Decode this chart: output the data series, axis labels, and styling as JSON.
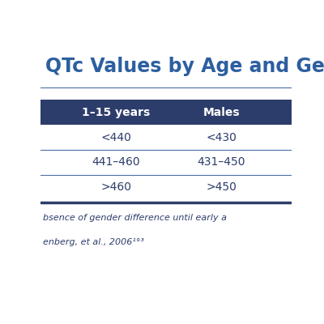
{
  "title_text": "QTc Values by Age and Ge",
  "header": [
    "1–15 years",
    "Males"
  ],
  "rows": [
    [
      "<440",
      "<430"
    ],
    [
      "441–460",
      "431–450"
    ],
    [
      ">460",
      ">450"
    ]
  ],
  "header_bg": "#2d3d6b",
  "header_text_color": "#ffffff",
  "row_bg_white": "#ffffff",
  "row_bg_light": "#ffffff",
  "divider_color": "#2d3d6b",
  "thin_divider_color": "#4a6fa5",
  "title_color": "#2d5fa0",
  "row_text_color": "#2d3d6b",
  "footer_line1": "bsence of gender difference until early a",
  "footer_line2": "enberg, et al., 2006¹°³",
  "bg_color": "#ffffff",
  "title_fontsize": 17,
  "header_fontsize": 10,
  "cell_fontsize": 10,
  "footer_fontsize": 8
}
